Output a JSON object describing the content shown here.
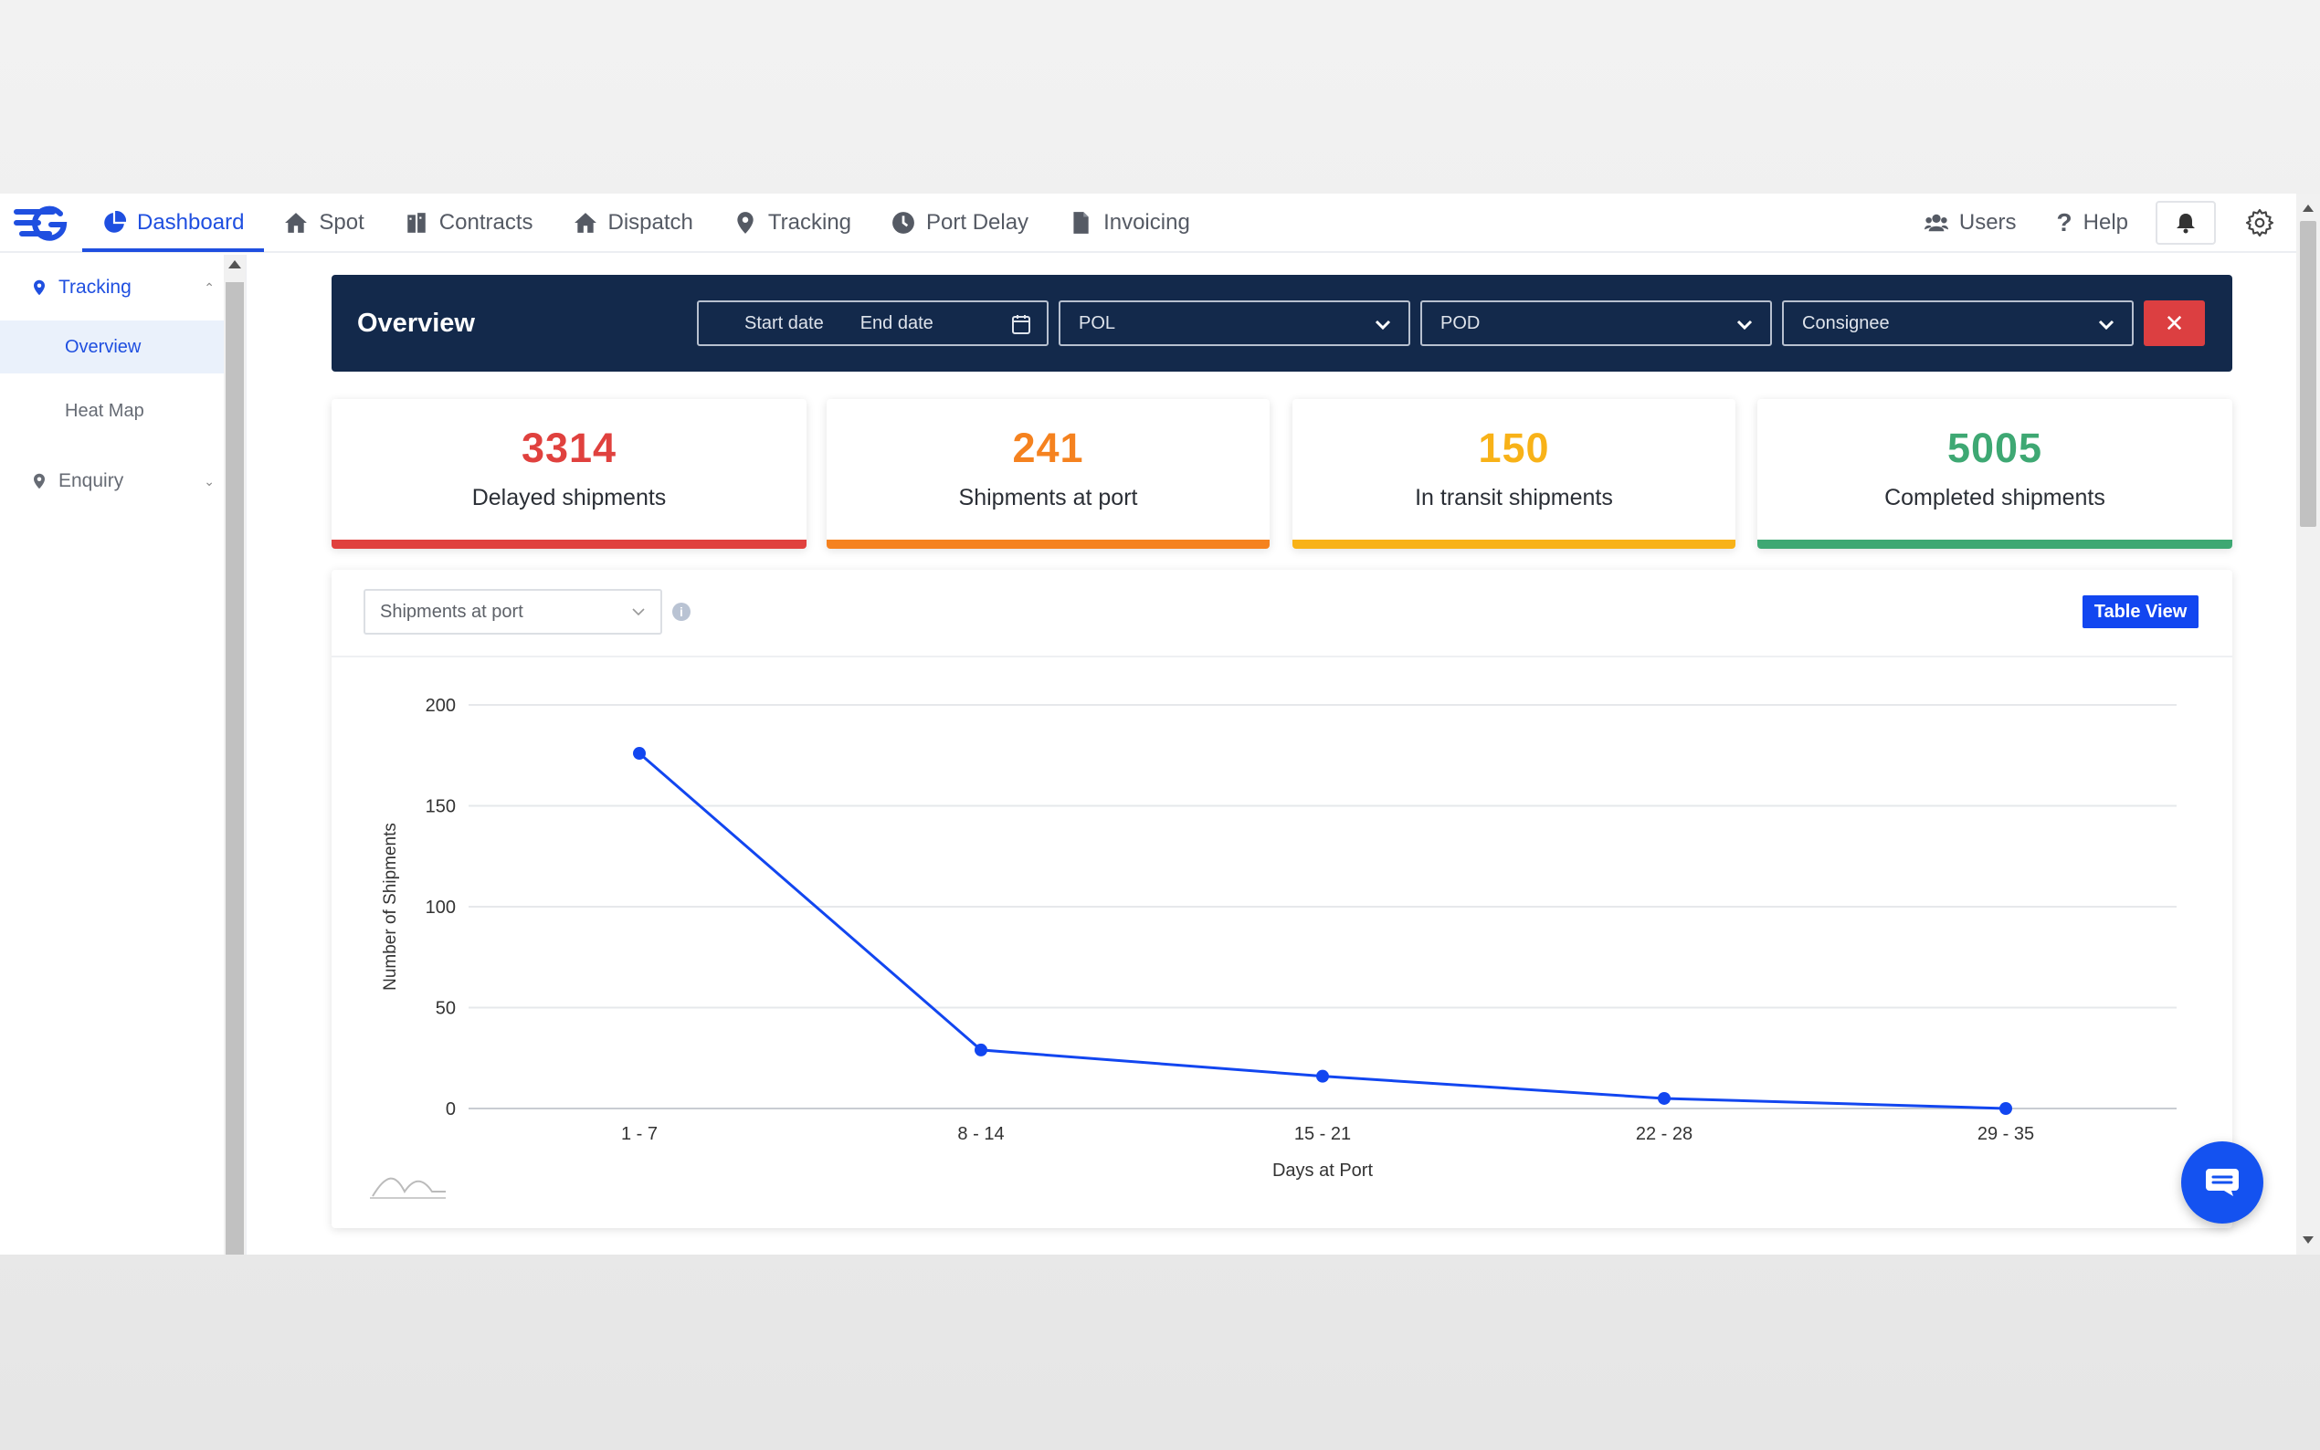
{
  "nav": {
    "items": [
      {
        "label": "Dashboard",
        "icon": "pie-chart-icon",
        "active": true
      },
      {
        "label": "Spot",
        "icon": "home-icon"
      },
      {
        "label": "Contracts",
        "icon": "building-icon"
      },
      {
        "label": "Dispatch",
        "icon": "home-icon"
      },
      {
        "label": "Tracking",
        "icon": "map-pin-icon"
      },
      {
        "label": "Port Delay",
        "icon": "clock-icon"
      },
      {
        "label": "Invoicing",
        "icon": "file-icon"
      }
    ],
    "users_label": "Users",
    "help_label": "Help"
  },
  "sidebar": {
    "tracking_label": "Tracking",
    "overview_label": "Overview",
    "heatmap_label": "Heat Map",
    "enquiry_label": "Enquiry"
  },
  "overview": {
    "title": "Overview",
    "start_date_placeholder": "Start date",
    "end_date_placeholder": "End date",
    "pol_label": "POL",
    "pod_label": "POD",
    "consignee_label": "Consignee",
    "close_label": "✕"
  },
  "stats": [
    {
      "value": "3314",
      "label": "Delayed shipments",
      "color": "#e0413e"
    },
    {
      "value": "241",
      "label": "Shipments at port",
      "color": "#f5821f"
    },
    {
      "value": "150",
      "label": "In transit shipments",
      "color": "#f8b218"
    },
    {
      "value": "5005",
      "label": "Completed shipments",
      "color": "#3ea873"
    }
  ],
  "chart_panel": {
    "select_value": "Shipments at port",
    "table_view_label": "Table View"
  },
  "chart_data": {
    "type": "line",
    "categories": [
      "1 - 7",
      "8 - 14",
      "15 - 21",
      "22 - 28",
      "29 - 35"
    ],
    "values": [
      176,
      29,
      16,
      5,
      0
    ],
    "xlabel": "Days at Port",
    "ylabel": "Number of Shipments",
    "ylim": [
      0,
      200
    ],
    "yticks": [
      0,
      50,
      100,
      150,
      200
    ],
    "grid": true,
    "color": "#1246f0"
  }
}
